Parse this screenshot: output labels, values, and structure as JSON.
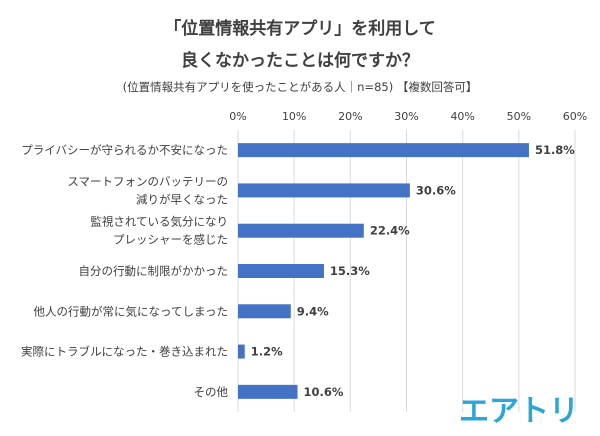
{
  "header": {
    "title_line1": "「位置情報共有アプリ」を利用して",
    "title_line2": "良くなかったことは何ですか？",
    "subtitle": "(位置情報共有アプリを使ったことがある人｜n=85) 【複数回答可】"
  },
  "logo": {
    "text": "エアトリ",
    "color": "#2aa7d8"
  },
  "chart_data": {
    "type": "bar",
    "orientation": "horizontal",
    "title": "「位置情報共有アプリ」を利用して 良くなかったことは何ですか？",
    "subtitle": "(位置情報共有アプリを使ったことがある人｜n=85) 【複数回答可】",
    "categories": [
      [
        "プライバシーが守られるか不安になった"
      ],
      [
        "スマートフォンのバッテリーの",
        "減りが早くなった"
      ],
      [
        "監視されている気分になり",
        "プレッシャーを感じた"
      ],
      [
        "自分の行動に制限がかかった"
      ],
      [
        "他人の行動が常に気になってしまった"
      ],
      [
        "実際にトラブルになった・巻き込まれた"
      ],
      [
        "その他"
      ]
    ],
    "values": [
      51.8,
      30.6,
      22.4,
      15.3,
      9.4,
      1.2,
      10.6
    ],
    "value_labels": [
      "51.8%",
      "30.6%",
      "22.4%",
      "15.3%",
      "9.4%",
      "1.2%",
      "10.6%"
    ],
    "xlim": [
      0,
      60
    ],
    "xticks": [
      0,
      10,
      20,
      30,
      40,
      50,
      60
    ],
    "xtick_labels": [
      "0%",
      "10%",
      "20%",
      "30%",
      "40%",
      "50%",
      "60%"
    ],
    "axis_position": "top",
    "grid": true,
    "bar_color": "#4472c4",
    "grid_color": "#d9d9d9"
  }
}
